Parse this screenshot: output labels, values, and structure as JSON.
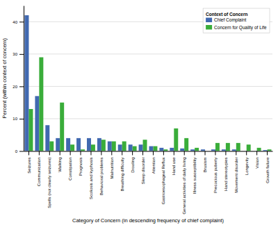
{
  "chart_data": {
    "type": "bar",
    "xlabel": "Category of Concern (in descending frequency of chief complaint)",
    "ylabel": "Percent (within context of concern)",
    "categories": [
      "Seizures",
      "Communication",
      "Spells (not clearly seizures)",
      "Walking",
      "Constipation",
      "Prognosis",
      "Scoliosis and kyphosis",
      "Behavioral problems",
      "Malnutrition",
      "Breathing difficulty",
      "Drooling",
      "Sleep disorder",
      "Attention",
      "Gastroesophageal Reflux",
      "Hand use",
      "General activities of daily living",
      "Illness susceptibility",
      "Bruxism",
      "Precocious puberty",
      "Hand stereotypies",
      "Movement disorder",
      "Longevity",
      "Vision",
      "Growth failure"
    ],
    "series": [
      {
        "name": "Chief Complaint",
        "color": "#4169b0",
        "values": [
          42,
          17,
          8,
          4,
          4,
          4,
          4,
          4,
          3,
          2,
          2,
          2,
          1.5,
          1,
          1,
          0.8,
          0.5,
          0.5,
          0.5,
          0.5,
          0.5,
          0,
          0,
          0.3
        ]
      },
      {
        "name": "Concern for Quality of Life",
        "color": "#3aad3a",
        "values": [
          13,
          29,
          3,
          15,
          2,
          0.5,
          2,
          3.5,
          3,
          3,
          1.5,
          3.5,
          1.5,
          0.5,
          7,
          4,
          1,
          0,
          2.5,
          2.5,
          2.5,
          2,
          1,
          0.5
        ]
      }
    ],
    "legend_title": "Context of Concern",
    "ylim": [
      0,
      45
    ],
    "yticks": [
      0,
      10,
      20,
      30,
      40
    ],
    "grid": true,
    "legend": "upper right"
  }
}
